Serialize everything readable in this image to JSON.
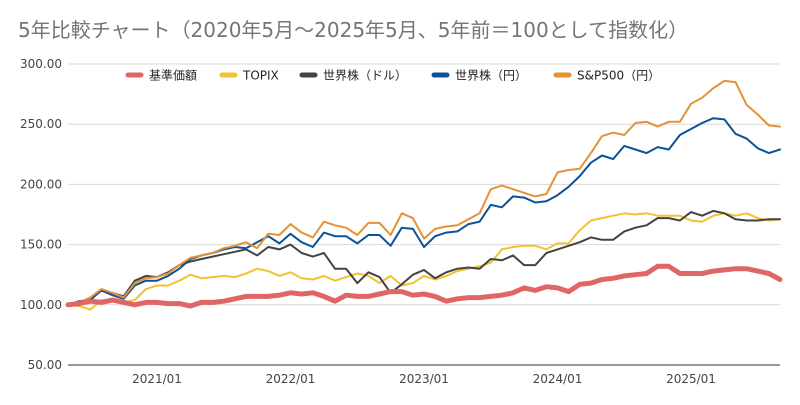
{
  "chart_data": {
    "type": "line",
    "title": "5年比較チャート（2020年5月〜2025年5月、5年前＝100として指数化）",
    "xlabel": "",
    "ylabel": "",
    "ylim": [
      50,
      300
    ],
    "yticks": [
      50,
      100,
      150,
      200,
      250,
      300
    ],
    "ytick_labels": [
      "50.00",
      "100.00",
      "150.00",
      "200.00",
      "250.00",
      "300.00"
    ],
    "xticks": [
      "2021/01",
      "2022/01",
      "2023/01",
      "2024/01",
      "2025/01"
    ],
    "xtick_month_index": [
      8,
      20,
      32,
      44,
      56
    ],
    "x_start": "2020/05",
    "x_end": "2025/05",
    "grid": true,
    "legend_position": "top",
    "series": [
      {
        "name": "基準価額",
        "color": "#e06666",
        "values": [
          100,
          101,
          103,
          102,
          104,
          102,
          100,
          102,
          102,
          101,
          101,
          99,
          102,
          102,
          103,
          105,
          107,
          107,
          107,
          108,
          110,
          109,
          110,
          107,
          103,
          108,
          107,
          107,
          109,
          111,
          111,
          108,
          109,
          107,
          103,
          105,
          106,
          106,
          107,
          108,
          110,
          114,
          112,
          115,
          114,
          111,
          117,
          118,
          121,
          122,
          124,
          125,
          126,
          132,
          132,
          126,
          126,
          126,
          128,
          129,
          130,
          130,
          128,
          126,
          121
        ]
      },
      {
        "name": "TOPIX",
        "color": "#f1c232",
        "values": [
          100,
          99,
          96,
          104,
          103,
          102,
          104,
          113,
          116,
          116,
          120,
          125,
          122,
          123,
          124,
          123,
          126,
          130,
          128,
          124,
          127,
          122,
          121,
          124,
          120,
          123,
          126,
          124,
          118,
          124,
          116,
          118,
          124,
          121,
          124,
          128,
          130,
          132,
          135,
          146,
          148,
          149,
          149,
          146,
          151,
          151,
          162,
          170,
          172,
          174,
          176,
          175,
          176,
          174,
          174,
          174,
          170,
          169,
          174,
          176,
          174,
          176,
          172,
          170,
          171
        ]
      },
      {
        "name": "世界株（ドル）",
        "color": "#434343",
        "values": [
          100,
          103,
          104,
          112,
          110,
          107,
          120,
          124,
          123,
          127,
          133,
          136,
          138,
          140,
          142,
          144,
          146,
          141,
          148,
          146,
          150,
          143,
          140,
          143,
          130,
          130,
          118,
          127,
          123,
          110,
          117,
          125,
          129,
          122,
          127,
          130,
          131,
          130,
          138,
          137,
          141,
          133,
          133,
          143,
          146,
          149,
          152,
          156,
          154,
          154,
          161,
          164,
          166,
          172,
          172,
          170,
          177,
          174,
          178,
          176,
          171,
          170,
          170,
          171,
          171
        ]
      },
      {
        "name": "世界株（円）",
        "color": "#0b5394",
        "values": [
          100,
          102,
          105,
          112,
          108,
          105,
          116,
          120,
          120,
          124,
          130,
          138,
          141,
          143,
          146,
          148,
          147,
          152,
          157,
          151,
          159,
          152,
          148,
          160,
          157,
          157,
          151,
          158,
          158,
          149,
          164,
          163,
          148,
          157,
          160,
          161,
          167,
          169,
          183,
          181,
          190,
          189,
          185,
          186,
          191,
          198,
          207,
          218,
          224,
          221,
          232,
          229,
          226,
          231,
          229,
          241,
          246,
          251,
          255,
          254,
          242,
          238,
          230,
          226,
          229
        ]
      },
      {
        "name": "S&P500（円）",
        "color": "#e69138",
        "values": [
          100,
          102,
          106,
          113,
          110,
          106,
          118,
          122,
          123,
          126,
          133,
          139,
          141,
          143,
          147,
          149,
          152,
          147,
          159,
          158,
          167,
          160,
          156,
          169,
          166,
          164,
          158,
          168,
          168,
          158,
          176,
          172,
          155,
          163,
          165,
          166,
          171,
          176,
          196,
          199,
          196,
          193,
          190,
          192,
          210,
          212,
          213,
          226,
          240,
          243,
          241,
          251,
          252,
          248,
          252,
          252,
          267,
          272,
          280,
          286,
          285,
          266,
          258,
          249,
          248
        ]
      }
    ]
  }
}
